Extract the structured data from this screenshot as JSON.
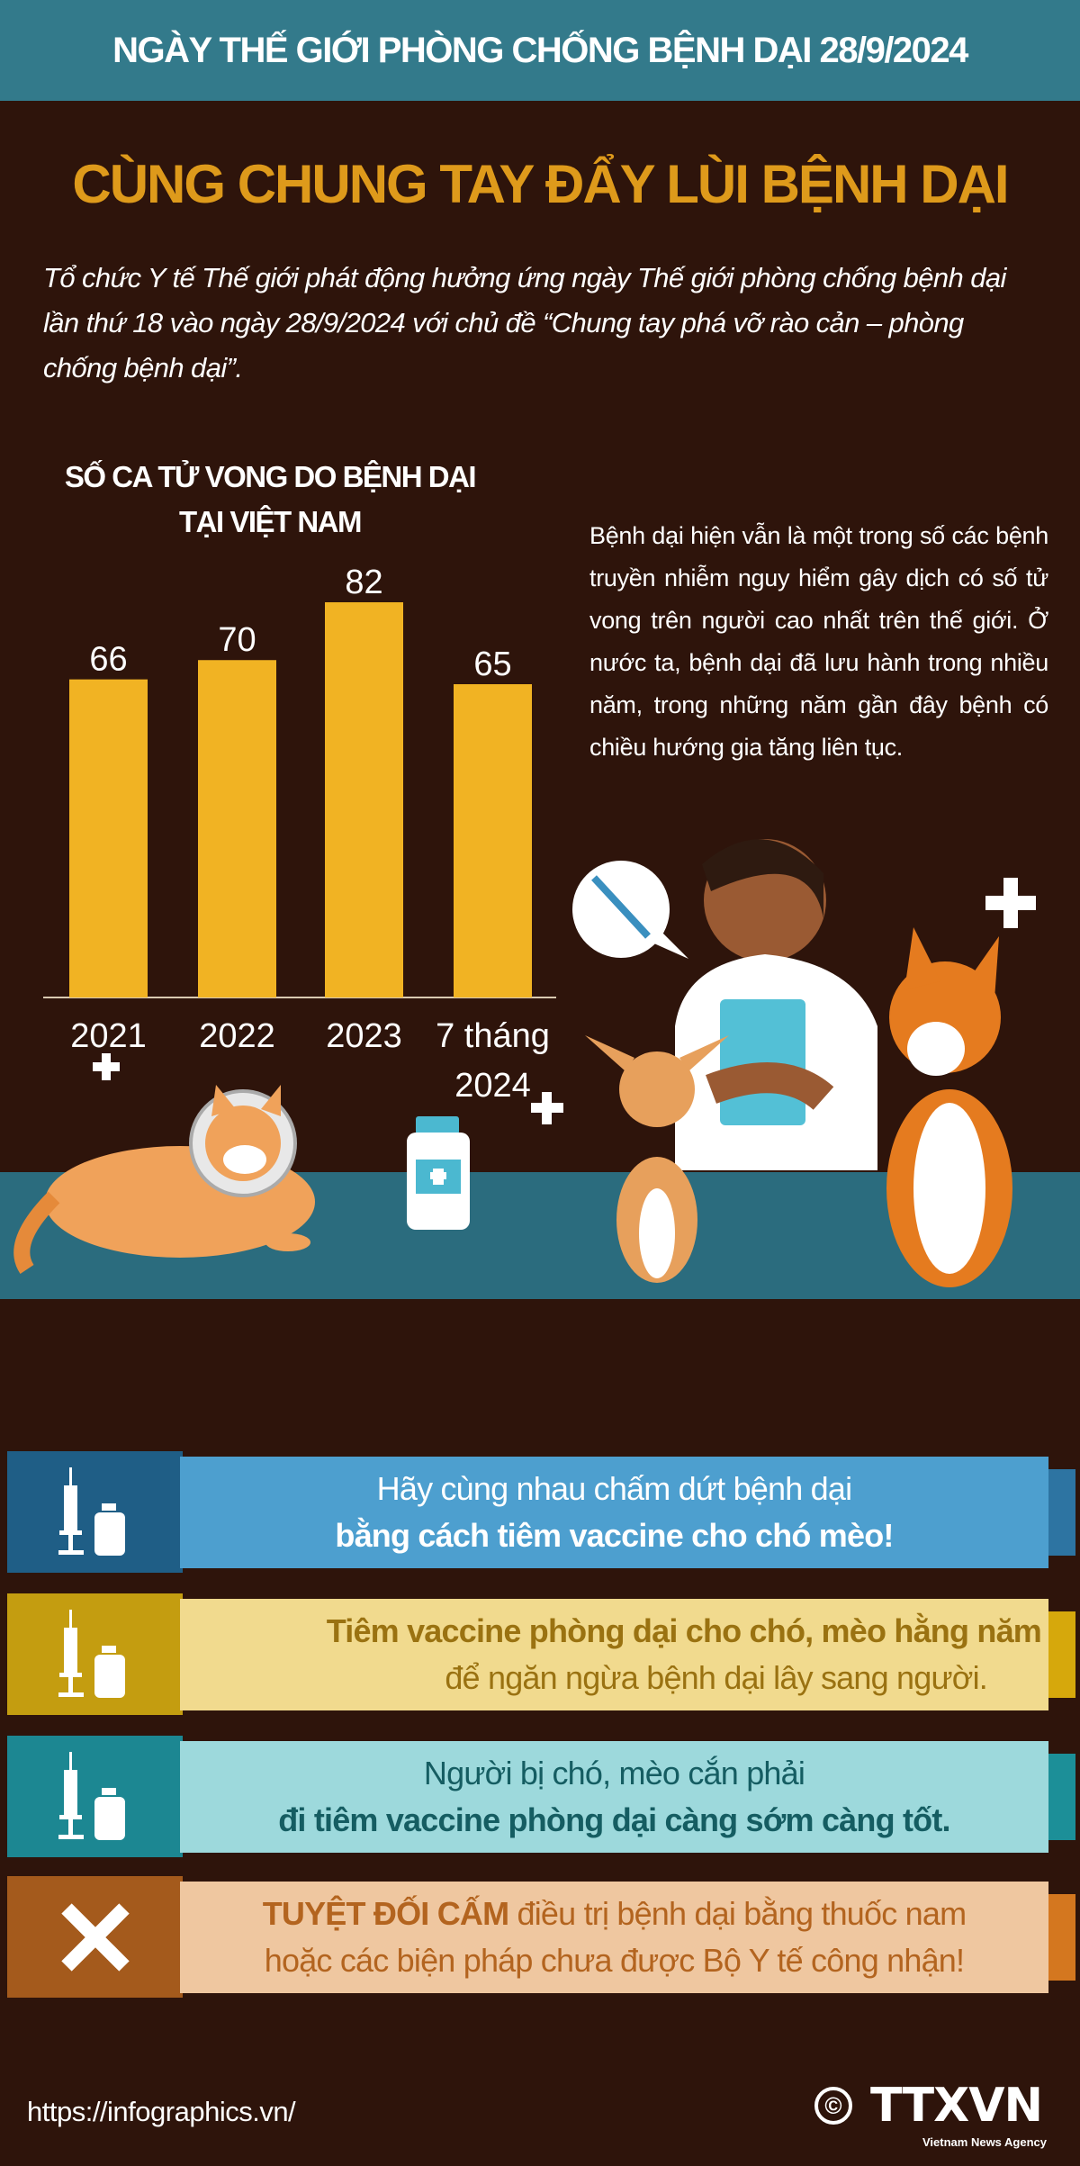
{
  "header": {
    "title": "NGÀY THẾ GIỚI PHÒNG CHỐNG BỆNH DẠI 28/9/2024"
  },
  "main_title": "CÙNG CHUNG TAY ĐẨY LÙI BỆNH DẠI",
  "intro": "Tổ chức Y tế Thế giới phát động hưởng ứng ngày Thế giới phòng chống bệnh dại lần thứ 18 vào ngày 28/9/2024 với chủ đề “Chung tay phá vỡ rào cản – phòng chống bệnh dại”.",
  "chart_data": {
    "type": "bar",
    "title_line1": "SỐ CA TỬ VONG DO BỆNH DẠI",
    "title_line2": "TẠI VIỆT NAM",
    "categories": [
      "2021",
      "2022",
      "2023",
      "7 tháng 2024"
    ],
    "category_lines": [
      [
        "2021"
      ],
      [
        "2022"
      ],
      [
        "2023"
      ],
      [
        "7 tháng",
        "2024"
      ]
    ],
    "values": [
      66,
      70,
      82,
      65
    ],
    "value_labels": [
      "66",
      "70",
      "82",
      "65"
    ],
    "ylim": [
      0,
      90
    ],
    "grid": false,
    "bar_color": "#f1b323"
  },
  "paragraph": "Bệnh dại hiện vẫn là một trong số các bệnh truyền nhiễm nguy hiểm gây dịch có số tử vong trên người cao nhất trên thế giới. Ở nước ta, bệnh dại đã lưu hành trong nhiều năm, trong những năm gần đây bệnh có chiều hướng gia tăng liên tục.",
  "banners": [
    {
      "icon": "vaccine-syringe-icon",
      "line1": "Hãy cùng nhau chấm dứt bệnh dại",
      "line2": "bằng cách tiêm vaccine cho chó mèo!",
      "colors": {
        "block": "#1f5e86",
        "body": "#4d9fcf",
        "tab": "#2d74a2",
        "text": "#ffffff"
      }
    },
    {
      "icon": "vaccine-syringe-icon",
      "line1": "Tiêm vaccine phòng dại cho chó, mèo hằng năm",
      "line2": "để ngăn ngừa bệnh dại lây sang người.",
      "colors": {
        "block": "#c49d10",
        "body": "#f1da8e",
        "tab": "#d6a80c",
        "text": "#9a7211"
      }
    },
    {
      "icon": "vaccine-syringe-icon",
      "line1": "Người bị chó, mèo cắn phải",
      "line2": "đi tiêm vaccine phòng dại càng sớm càng tốt.",
      "colors": {
        "block": "#1c8792",
        "body": "#9dd9dc",
        "tab": "#1c8f98",
        "text": "#155d62"
      }
    },
    {
      "icon": "x-mark-icon",
      "line1_bold": "TUYỆT ĐỐI CẤM",
      "line1": " điều trị bệnh dại bằng thuốc nam",
      "line2": "hoặc các biện pháp chưa được Bộ Y tế công nhận!",
      "colors": {
        "block": "#a45a1c",
        "body": "#efc7a0",
        "tab": "#d4771f",
        "text": "#b3641f"
      }
    }
  ],
  "footer": {
    "url": "https://infographics.vn/",
    "copyright": "©",
    "logo": "TTXVN",
    "agency": "Vietnam News Agency"
  }
}
